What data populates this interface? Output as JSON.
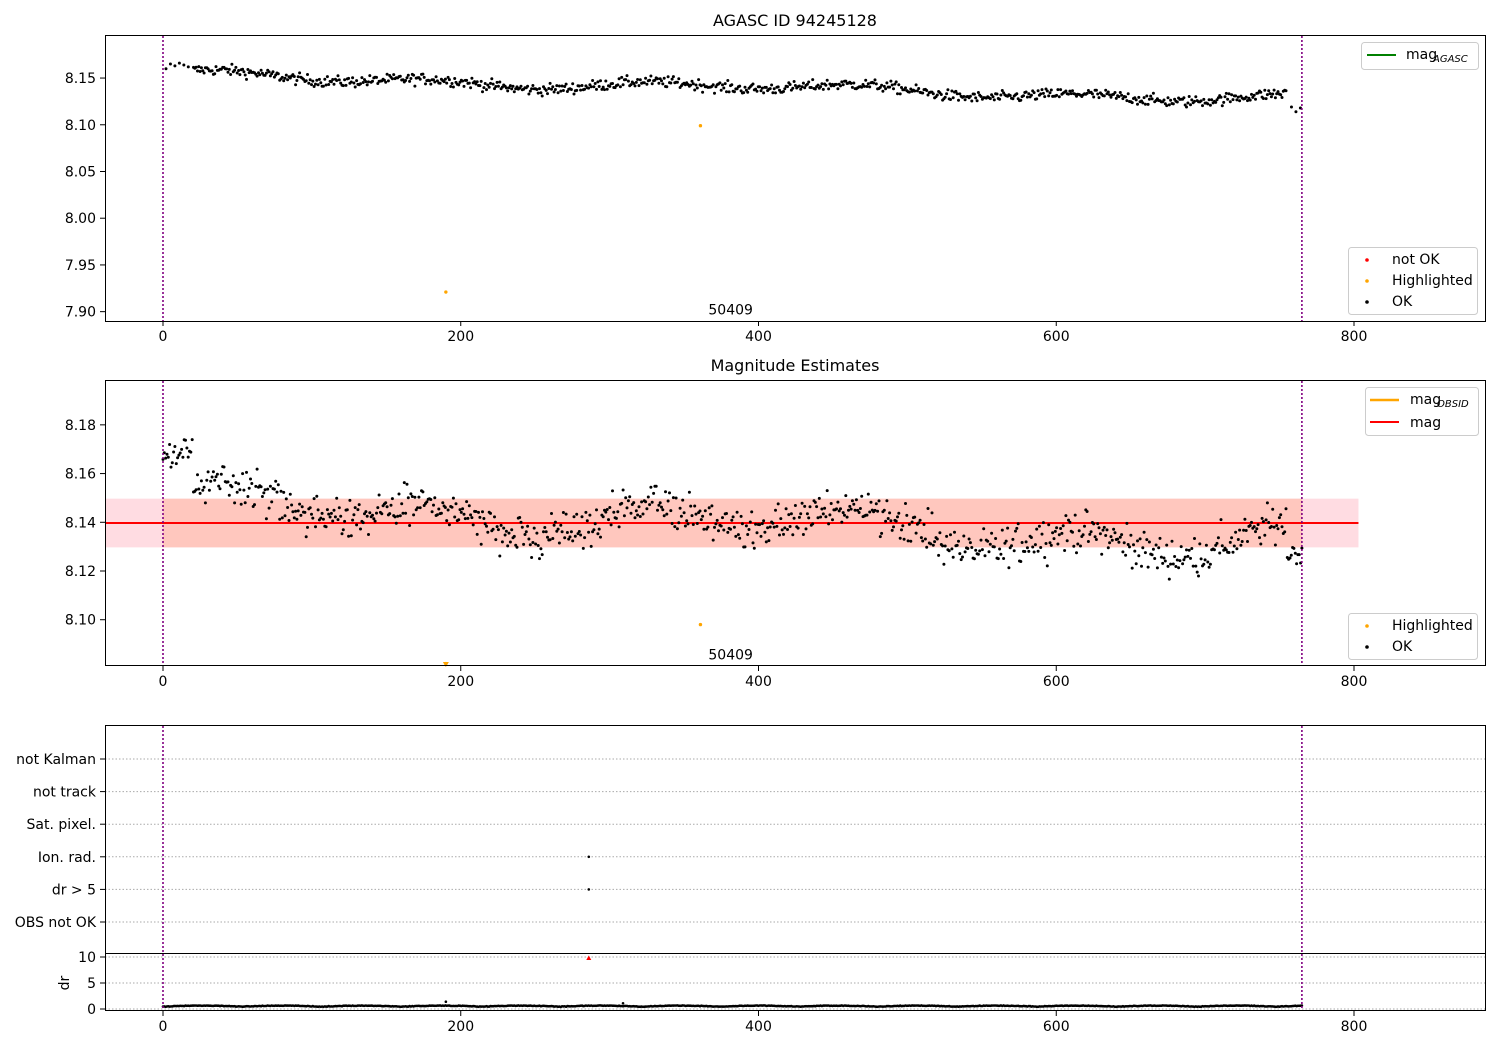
{
  "chart_data": [
    {
      "type": "scatter",
      "title": "AGASC ID 94245128",
      "xlim": [
        -40,
        890
      ],
      "ylim": [
        7.89,
        8.195
      ],
      "xticks": [
        "0",
        "200",
        "400",
        "600",
        "800"
      ],
      "yticks": [
        "7.90",
        "7.95",
        "8.00",
        "8.05",
        "8.10",
        "8.15"
      ],
      "vlines": [
        0,
        765
      ],
      "ok_trend": {
        "x_start": 0,
        "x_end": 765,
        "y_start": 8.153,
        "y_end": 8.127,
        "first_points": [
          [
            2,
            8.16
          ],
          [
            5,
            8.165
          ],
          [
            8,
            8.163
          ],
          [
            11,
            8.166
          ],
          [
            14,
            8.164
          ],
          [
            17,
            8.162
          ]
        ],
        "last_points": [
          [
            758,
            8.119
          ],
          [
            761,
            8.114
          ],
          [
            764,
            8.118
          ]
        ]
      },
      "highlighted_points": [
        {
          "x": 190,
          "y": 7.921
        },
        {
          "x": 361,
          "y": 8.099
        }
      ],
      "annotation": {
        "text": "50409",
        "x": 365,
        "y": 7.9
      },
      "legend_top": [
        {
          "label": "mag",
          "sub": "AGASC",
          "color": "#008000"
        }
      ],
      "legend_bottom": [
        {
          "label": "not OK",
          "color": "#ff0000"
        },
        {
          "label": "Highlighted",
          "color": "#ffa500"
        },
        {
          "label": "OK",
          "color": "#000000"
        }
      ]
    },
    {
      "type": "scatter",
      "title": "Magnitude Estimates",
      "xlim": [
        -40,
        890
      ],
      "ylim": [
        8.081,
        8.198
      ],
      "xticks": [
        "0",
        "200",
        "400",
        "600",
        "800"
      ],
      "yticks": [
        "8.10",
        "8.12",
        "8.14",
        "8.16",
        "8.18"
      ],
      "vlines": [
        0,
        765
      ],
      "mag": 8.1397,
      "mag_band": [
        8.1297,
        8.1497
      ],
      "mag_obsid_band": [
        8.1297,
        8.1497
      ],
      "ok_trend": {
        "x_start": 0,
        "x_end": 765,
        "y_start": 8.148,
        "y_end": 8.131
      },
      "highlighted_points": [
        {
          "x": 190,
          "y": 8.082
        },
        {
          "x": 361,
          "y": 8.098
        }
      ],
      "annotation": {
        "text": "50409",
        "x": 365,
        "y": 8.085
      },
      "legend_top": [
        {
          "label": "mag",
          "sub": "OBSID",
          "color": "#ffa500"
        },
        {
          "label": "mag",
          "sub": "",
          "color": "#ff0000"
        }
      ],
      "legend_bottom": [
        {
          "label": "Highlighted",
          "color": "#ffa500"
        },
        {
          "label": "OK",
          "color": "#000000"
        }
      ]
    },
    {
      "type": "scatter",
      "title": "",
      "xlim": [
        -40,
        890
      ],
      "xticks": [
        "0",
        "200",
        "400",
        "600",
        "800"
      ],
      "vlines": [
        0,
        765
      ],
      "flags": [
        "not Kalman",
        "not track",
        "Sat. pixel.",
        "Ion. rad.",
        "dr > 5",
        "OBS not OK"
      ],
      "flag_points": [
        {
          "flag": "Ion. rad.",
          "x": 286
        },
        {
          "flag": "dr > 5",
          "x": 286
        }
      ],
      "dr": {
        "ylabel": "dr",
        "ylim": [
          -0.5,
          11
        ],
        "yticks": [
          "0",
          "5",
          "10"
        ],
        "baseline": 0.4,
        "outlier": {
          "x": 286,
          "y": 10
        },
        "spikes": [
          {
            "x": 190,
            "y": 1.4
          },
          {
            "x": 309,
            "y": 1.1
          }
        ]
      }
    }
  ]
}
